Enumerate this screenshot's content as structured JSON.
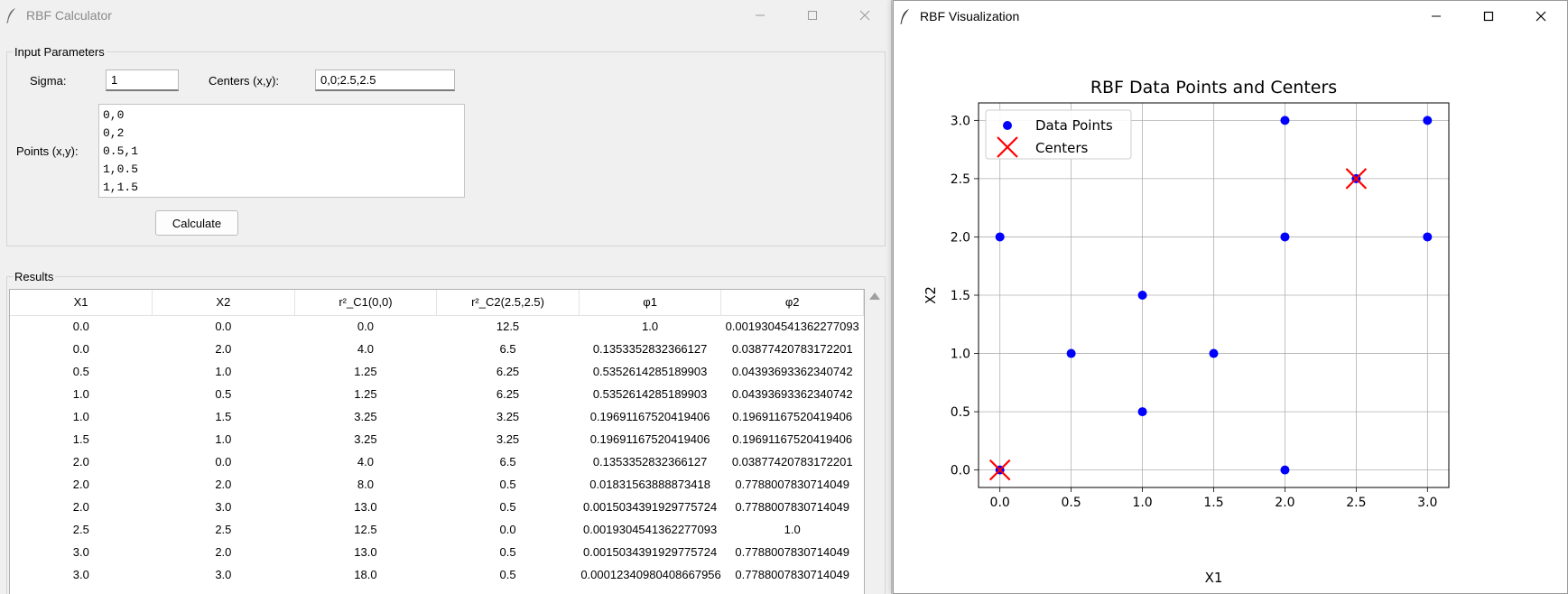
{
  "calc": {
    "title": "RBF Calculator",
    "input_group": "Input Parameters",
    "sigma_label": "Sigma:",
    "sigma_value": "1",
    "centers_label": "Centers (x,y):",
    "centers_value": "0,0;2.5,2.5",
    "points_label": "Points (x,y):",
    "points_lines": [
      "0,0",
      "0,2",
      "0.5,1",
      "1,0.5",
      "1,1.5"
    ],
    "calculate_label": "Calculate",
    "results_group": "Results",
    "columns": [
      "X1",
      "X2",
      "r²_C1(0,0)",
      "r²_C2(2.5,2.5)",
      "φ1",
      "φ2"
    ],
    "rows": [
      [
        "0.0",
        "0.0",
        "0.0",
        "12.5",
        "1.0",
        "0.0019304541362277093"
      ],
      [
        "0.0",
        "2.0",
        "4.0",
        "6.5",
        "0.1353352832366127",
        "0.03877420783172201"
      ],
      [
        "0.5",
        "1.0",
        "1.25",
        "6.25",
        "0.5352614285189903",
        "0.04393693362340742"
      ],
      [
        "1.0",
        "0.5",
        "1.25",
        "6.25",
        "0.5352614285189903",
        "0.04393693362340742"
      ],
      [
        "1.0",
        "1.5",
        "3.25",
        "3.25",
        "0.19691167520419406",
        "0.19691167520419406"
      ],
      [
        "1.5",
        "1.0",
        "3.25",
        "3.25",
        "0.19691167520419406",
        "0.19691167520419406"
      ],
      [
        "2.0",
        "0.0",
        "4.0",
        "6.5",
        "0.1353352832366127",
        "0.03877420783172201"
      ],
      [
        "2.0",
        "2.0",
        "8.0",
        "0.5",
        "0.01831563888873418",
        "0.7788007830714049"
      ],
      [
        "2.0",
        "3.0",
        "13.0",
        "0.5",
        "0.0015034391929775724",
        "0.7788007830714049"
      ],
      [
        "2.5",
        "2.5",
        "12.5",
        "0.0",
        "0.0019304541362277093",
        "1.0"
      ],
      [
        "3.0",
        "2.0",
        "13.0",
        "0.5",
        "0.0015034391929775724",
        "0.7788007830714049"
      ],
      [
        "3.0",
        "3.0",
        "18.0",
        "0.5",
        "0.00012340980408667956",
        "0.7788007830714049"
      ]
    ]
  },
  "viz": {
    "title": "RBF Visualization"
  },
  "window_controls": {
    "minimize": "—",
    "maximize": "☐",
    "close": "✕"
  },
  "chart_data": {
    "type": "scatter",
    "title": "RBF Data Points and Centers",
    "xlabel": "X1",
    "ylabel": "X2",
    "xlim": [
      -0.15,
      3.15
    ],
    "ylim": [
      -0.15,
      3.15
    ],
    "xticks": [
      "0.0",
      "0.5",
      "1.0",
      "1.5",
      "2.0",
      "2.5",
      "3.0"
    ],
    "yticks": [
      "0.0",
      "0.5",
      "1.0",
      "1.5",
      "2.0",
      "2.5",
      "3.0"
    ],
    "grid": true,
    "legend_position": "upper left",
    "series": [
      {
        "name": "Data Points",
        "marker": "circle",
        "color": "#0000ff",
        "points": [
          [
            0,
            0
          ],
          [
            0,
            2
          ],
          [
            0.5,
            1
          ],
          [
            1,
            0.5
          ],
          [
            1,
            1.5
          ],
          [
            1.5,
            1
          ],
          [
            2,
            0
          ],
          [
            2,
            2
          ],
          [
            2,
            3
          ],
          [
            2.5,
            2.5
          ],
          [
            3,
            2
          ],
          [
            3,
            3
          ]
        ]
      },
      {
        "name": "Centers",
        "marker": "x",
        "color": "#ff0000",
        "points": [
          [
            0,
            0
          ],
          [
            2.5,
            2.5
          ]
        ]
      }
    ]
  }
}
